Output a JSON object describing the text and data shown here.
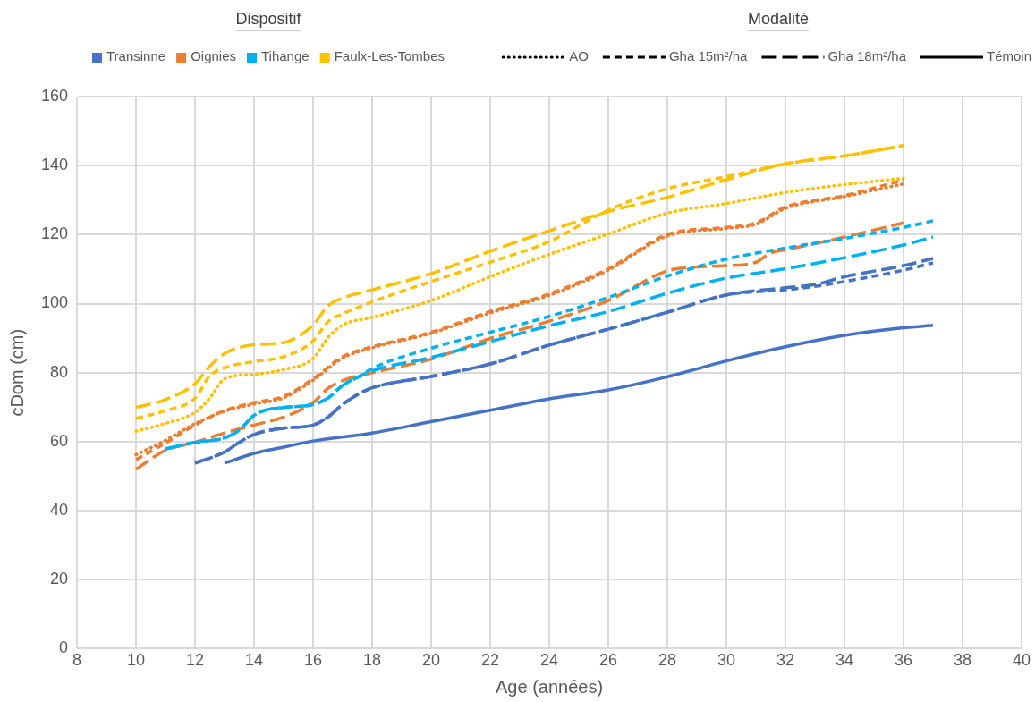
{
  "chart_data": {
    "type": "line",
    "xlabel": "Age (années)",
    "ylabel": "cDom (cm)",
    "legend_title": [
      "Dispositif",
      "Modalité"
    ],
    "legend": "top",
    "grid": true,
    "xlim": [
      8,
      40
    ],
    "xticks": [
      8,
      10,
      12,
      14,
      16,
      18,
      20,
      22,
      24,
      26,
      28,
      30,
      32,
      34,
      36,
      38,
      40
    ],
    "ylim": [
      0,
      160
    ],
    "yticks": [
      0,
      20,
      40,
      60,
      80,
      100,
      120,
      140,
      160
    ],
    "series": [
      {
        "name": "Transinne",
        "color": "#4472c4"
      },
      {
        "name": "Oignies",
        "color": "#ed7d31"
      },
      {
        "name": "Tihange",
        "color": "#00b0f0"
      },
      {
        "name": "Faulx-Les-Tombes",
        "color": "#ffc000"
      },
      {
        "name": "AO",
        "color": "#000000",
        "line_style": "dotted"
      },
      {
        "name": "Gha 15m²/ha",
        "color": "#000000",
        "line_style": "dashed"
      },
      {
        "name": "Gha 18m²/ha",
        "color": "#000000",
        "line_style": "longdash"
      },
      {
        "name": "Témoin",
        "color": "#000000",
        "line_style": "solid"
      },
      {
        "color": "#4472c4",
        "line_style": "solid",
        "x": [
          13,
          14,
          15,
          16,
          18,
          20,
          22,
          24,
          26,
          28,
          30,
          32,
          34,
          36,
          37
        ],
        "values": [
          53.8,
          56.6,
          58.4,
          60.2,
          62.5,
          65.8,
          69.1,
          72.4,
          75,
          78.8,
          83.4,
          87.5,
          90.8,
          93,
          93.7
        ]
      },
      {
        "color": "#4472c4",
        "line_style": "dashed",
        "x": [
          12,
          13,
          13.5,
          14,
          15,
          16,
          16.5,
          17,
          17.5,
          18,
          20,
          22,
          24,
          26,
          28,
          30,
          32,
          33,
          34,
          36,
          37
        ],
        "values": [
          53.8,
          57,
          59.8,
          62.1,
          63.9,
          64.8,
          67.1,
          70.8,
          73.6,
          75.6,
          78.9,
          82.5,
          88,
          92.6,
          97.5,
          102.5,
          104,
          105,
          106.4,
          109.7,
          111.8
        ]
      },
      {
        "color": "#4472c4",
        "line_style": "longdash",
        "x": [
          12,
          13,
          13.5,
          14,
          15,
          16,
          16.5,
          17,
          17.5,
          18,
          20,
          22,
          24,
          26,
          28,
          30,
          32,
          33,
          34,
          36,
          37
        ],
        "values": [
          53.8,
          57,
          59.8,
          62.1,
          63.9,
          64.8,
          67.1,
          70.8,
          73.6,
          75.6,
          78.9,
          82.5,
          88,
          92.6,
          97.5,
          102.5,
          104.6,
          105.5,
          107.8,
          111,
          113.1
        ]
      },
      {
        "color": "#00b0f0",
        "line_style": "dashed",
        "x": [
          11,
          12,
          13,
          13.5,
          14,
          14.5,
          15,
          16,
          16.5,
          17,
          17.5,
          18,
          20,
          22,
          24,
          26,
          28,
          30,
          32,
          34,
          36,
          37
        ],
        "values": [
          57.9,
          59.8,
          61.1,
          63.4,
          67.6,
          69.4,
          69.9,
          70.8,
          72.6,
          76.3,
          78.6,
          81.2,
          87.1,
          91.7,
          96.3,
          101.8,
          108,
          112.9,
          116.1,
          118.9,
          122.1,
          124
        ]
      },
      {
        "color": "#00b0f0",
        "line_style": "longdash",
        "x": [
          11,
          12,
          13,
          13.5,
          14,
          14.5,
          15,
          16,
          16.5,
          17,
          17.5,
          18,
          20,
          22,
          24,
          26,
          28,
          30,
          32,
          34,
          36,
          37
        ],
        "values": [
          57.9,
          59.8,
          61.1,
          63.4,
          67.6,
          69.4,
          69.9,
          70.8,
          72.6,
          76.3,
          78.6,
          80.5,
          84.4,
          89,
          93.6,
          97.7,
          103,
          107.4,
          110.1,
          113.3,
          117,
          119.3
        ]
      },
      {
        "color": "#ed7d31",
        "line_style": "dotted",
        "x": [
          10,
          11,
          12,
          13,
          14,
          15,
          16,
          17,
          18,
          20,
          22,
          24,
          26,
          28,
          30,
          31,
          32,
          34,
          36
        ],
        "values": [
          56.2,
          60.4,
          65.2,
          68.8,
          70.9,
          72.7,
          77.8,
          84.2,
          87.2,
          91.4,
          97.3,
          102.4,
          109.7,
          119.6,
          121.8,
          123,
          127.6,
          131,
          134.7
        ]
      },
      {
        "color": "#ed7d31",
        "line_style": "dashed",
        "x": [
          10,
          11,
          12,
          13,
          14,
          15,
          16,
          17,
          18,
          20,
          22,
          24,
          26,
          28,
          30,
          31,
          32,
          34,
          36
        ],
        "values": [
          54.8,
          59.6,
          64.8,
          69,
          71.3,
          73.1,
          78.2,
          84.6,
          87.5,
          91.7,
          97.7,
          102.8,
          110.1,
          120,
          122.1,
          123.4,
          128,
          131.3,
          135.8
        ]
      },
      {
        "color": "#ed7d31",
        "line_style": "longdash",
        "x": [
          10,
          11,
          12,
          13,
          14,
          15,
          16,
          16.5,
          17,
          18,
          20,
          22,
          24,
          26,
          28,
          29,
          30,
          31,
          31.5,
          32,
          34,
          36
        ],
        "values": [
          52,
          57.5,
          59.8,
          62.5,
          64.8,
          67.1,
          71.3,
          75.4,
          77.7,
          80,
          83.9,
          89.9,
          94.9,
          100.9,
          109.5,
          110.6,
          111,
          112,
          114.7,
          115.6,
          119.3,
          123.4
        ]
      },
      {
        "color": "#ffc000",
        "line_style": "dotted",
        "x": [
          10,
          11,
          12,
          12.5,
          13,
          14,
          15,
          16,
          16.5,
          17,
          18,
          20,
          22,
          24,
          26,
          28,
          30,
          32,
          34,
          36
        ],
        "values": [
          63,
          65.3,
          68.5,
          72.6,
          78.2,
          79.5,
          80.9,
          84.1,
          90.1,
          93.8,
          96,
          100.9,
          107.8,
          114.3,
          120.2,
          126.2,
          129,
          132.2,
          134.5,
          136.3
        ]
      },
      {
        "color": "#ffc000",
        "line_style": "dashed",
        "x": [
          10,
          11,
          12,
          12.5,
          13,
          14,
          15,
          16,
          16.5,
          17,
          18,
          20,
          22,
          24,
          26,
          28,
          30,
          32,
          34,
          36
        ],
        "values": [
          66.7,
          69,
          72.6,
          79.1,
          81.4,
          83.2,
          84.6,
          89.2,
          94.7,
          97,
          100.5,
          106.4,
          112,
          118,
          127.1,
          133.3,
          136.8,
          140.5,
          142.8,
          145.8
        ]
      },
      {
        "color": "#ffc000",
        "line_style": "longdash",
        "x": [
          10,
          11,
          12,
          12.5,
          13,
          14,
          15,
          16,
          16.5,
          17,
          18,
          20,
          22,
          24,
          26,
          28,
          30,
          32,
          34,
          36
        ],
        "values": [
          69.9,
          72.2,
          76.8,
          81.8,
          85.5,
          88.1,
          88.7,
          93.8,
          99.3,
          101.6,
          104,
          108.7,
          115.2,
          121.1,
          126.7,
          130.8,
          135.9,
          140.5,
          142.8,
          145.8
        ]
      }
    ]
  }
}
